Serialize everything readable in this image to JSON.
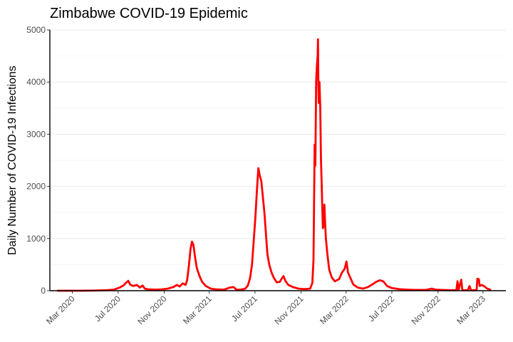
{
  "chart_data": {
    "type": "line",
    "title": "Zimbabwe COVID-19 Epidemic",
    "xlabel": "",
    "ylabel": "Daily Number of COVID-19 Infections",
    "line_color": "#ff0000",
    "grid": "horizontal",
    "legend": "none",
    "xlim": [
      "2020-01-01",
      "2023-05-01"
    ],
    "ylim": [
      0,
      5000
    ],
    "x_ticks": [
      {
        "date": "2020-03-01",
        "label": "Mar 2020"
      },
      {
        "date": "2020-07-01",
        "label": "Jul 2020"
      },
      {
        "date": "2020-11-01",
        "label": "Nov 2020"
      },
      {
        "date": "2021-03-01",
        "label": "Mar 2021"
      },
      {
        "date": "2021-07-01",
        "label": "Jul 2021"
      },
      {
        "date": "2021-11-01",
        "label": "Nov 2021"
      },
      {
        "date": "2022-03-01",
        "label": "Mar 2022"
      },
      {
        "date": "2022-07-01",
        "label": "Jul 2022"
      },
      {
        "date": "2022-11-01",
        "label": "Nov 2022"
      },
      {
        "date": "2023-03-01",
        "label": "Mar 2023"
      }
    ],
    "y_ticks": [
      0,
      1000,
      2000,
      3000,
      4000,
      5000
    ],
    "y_minor_ticks": [
      500,
      1500,
      2500,
      3500,
      4500
    ],
    "series": [
      {
        "points": [
          [
            "2020-01-22",
            0
          ],
          [
            "2020-03-20",
            0
          ],
          [
            "2020-04-15",
            2
          ],
          [
            "2020-05-10",
            5
          ],
          [
            "2020-06-01",
            10
          ],
          [
            "2020-06-20",
            20
          ],
          [
            "2020-07-05",
            60
          ],
          [
            "2020-07-15",
            100
          ],
          [
            "2020-07-22",
            150
          ],
          [
            "2020-07-28",
            190
          ],
          [
            "2020-08-02",
            120
          ],
          [
            "2020-08-10",
            90
          ],
          [
            "2020-08-20",
            110
          ],
          [
            "2020-08-28",
            60
          ],
          [
            "2020-09-04",
            100
          ],
          [
            "2020-09-10",
            40
          ],
          [
            "2020-09-20",
            25
          ],
          [
            "2020-10-10",
            20
          ],
          [
            "2020-10-25",
            25
          ],
          [
            "2020-11-10",
            40
          ],
          [
            "2020-11-25",
            70
          ],
          [
            "2020-12-05",
            110
          ],
          [
            "2020-12-12",
            80
          ],
          [
            "2020-12-20",
            140
          ],
          [
            "2020-12-28",
            110
          ],
          [
            "2021-01-01",
            200
          ],
          [
            "2021-01-06",
            500
          ],
          [
            "2021-01-10",
            800
          ],
          [
            "2021-01-14",
            940
          ],
          [
            "2021-01-18",
            870
          ],
          [
            "2021-01-22",
            650
          ],
          [
            "2021-01-27",
            430
          ],
          [
            "2021-02-03",
            280
          ],
          [
            "2021-02-10",
            170
          ],
          [
            "2021-02-20",
            90
          ],
          [
            "2021-03-05",
            40
          ],
          [
            "2021-03-20",
            25
          ],
          [
            "2021-04-10",
            20
          ],
          [
            "2021-04-25",
            60
          ],
          [
            "2021-05-05",
            70
          ],
          [
            "2021-05-12",
            20
          ],
          [
            "2021-05-25",
            20
          ],
          [
            "2021-06-05",
            40
          ],
          [
            "2021-06-12",
            100
          ],
          [
            "2021-06-18",
            250
          ],
          [
            "2021-06-23",
            500
          ],
          [
            "2021-06-27",
            900
          ],
          [
            "2021-07-02",
            1400
          ],
          [
            "2021-07-06",
            1900
          ],
          [
            "2021-07-10",
            2350
          ],
          [
            "2021-07-14",
            2200
          ],
          [
            "2021-07-18",
            2100
          ],
          [
            "2021-07-22",
            1800
          ],
          [
            "2021-07-26",
            1500
          ],
          [
            "2021-07-30",
            1100
          ],
          [
            "2021-08-03",
            700
          ],
          [
            "2021-08-08",
            500
          ],
          [
            "2021-08-14",
            350
          ],
          [
            "2021-08-20",
            250
          ],
          [
            "2021-08-28",
            160
          ],
          [
            "2021-09-05",
            170
          ],
          [
            "2021-09-10",
            230
          ],
          [
            "2021-09-15",
            280
          ],
          [
            "2021-09-20",
            190
          ],
          [
            "2021-09-28",
            110
          ],
          [
            "2021-10-10",
            70
          ],
          [
            "2021-10-25",
            40
          ],
          [
            "2021-11-10",
            30
          ],
          [
            "2021-11-25",
            40
          ],
          [
            "2021-12-01",
            150
          ],
          [
            "2021-12-04",
            600
          ],
          [
            "2021-12-07",
            2800
          ],
          [
            "2021-12-09",
            2400
          ],
          [
            "2021-12-11",
            4000
          ],
          [
            "2021-12-13",
            4300
          ],
          [
            "2021-12-15",
            4500
          ],
          [
            "2021-12-16",
            4820
          ],
          [
            "2021-12-17",
            4000
          ],
          [
            "2021-12-18",
            3600
          ],
          [
            "2021-12-20",
            4000
          ],
          [
            "2021-12-22",
            3500
          ],
          [
            "2021-12-24",
            2500
          ],
          [
            "2021-12-26",
            2000
          ],
          [
            "2021-12-27",
            1700
          ],
          [
            "2021-12-29",
            1200
          ],
          [
            "2021-12-31",
            1250
          ],
          [
            "2022-01-02",
            1650
          ],
          [
            "2022-01-04",
            1300
          ],
          [
            "2022-01-06",
            1000
          ],
          [
            "2022-01-10",
            700
          ],
          [
            "2022-01-15",
            400
          ],
          [
            "2022-01-22",
            250
          ],
          [
            "2022-01-30",
            180
          ],
          [
            "2022-02-10",
            220
          ],
          [
            "2022-02-18",
            350
          ],
          [
            "2022-02-25",
            420
          ],
          [
            "2022-03-02",
            560
          ],
          [
            "2022-03-06",
            350
          ],
          [
            "2022-03-12",
            250
          ],
          [
            "2022-03-20",
            120
          ],
          [
            "2022-04-01",
            60
          ],
          [
            "2022-04-15",
            40
          ],
          [
            "2022-04-28",
            70
          ],
          [
            "2022-05-10",
            120
          ],
          [
            "2022-05-20",
            170
          ],
          [
            "2022-05-30",
            200
          ],
          [
            "2022-06-08",
            180
          ],
          [
            "2022-06-18",
            90
          ],
          [
            "2022-07-01",
            50
          ],
          [
            "2022-07-20",
            30
          ],
          [
            "2022-08-10",
            20
          ],
          [
            "2022-09-01",
            15
          ],
          [
            "2022-10-01",
            15
          ],
          [
            "2022-10-15",
            40
          ],
          [
            "2022-10-25",
            20
          ],
          [
            "2022-11-10",
            15
          ],
          [
            "2022-12-01",
            10
          ],
          [
            "2022-12-20",
            10
          ],
          [
            "2022-12-23",
            180
          ],
          [
            "2022-12-26",
            20
          ],
          [
            "2023-01-02",
            210
          ],
          [
            "2023-01-05",
            10
          ],
          [
            "2023-01-20",
            10
          ],
          [
            "2023-01-24",
            90
          ],
          [
            "2023-01-28",
            10
          ],
          [
            "2023-02-12",
            10
          ],
          [
            "2023-02-14",
            230
          ],
          [
            "2023-02-18",
            220
          ],
          [
            "2023-02-20",
            90
          ],
          [
            "2023-02-26",
            110
          ],
          [
            "2023-03-05",
            80
          ],
          [
            "2023-03-12",
            40
          ],
          [
            "2023-03-20",
            20
          ]
        ]
      }
    ]
  }
}
